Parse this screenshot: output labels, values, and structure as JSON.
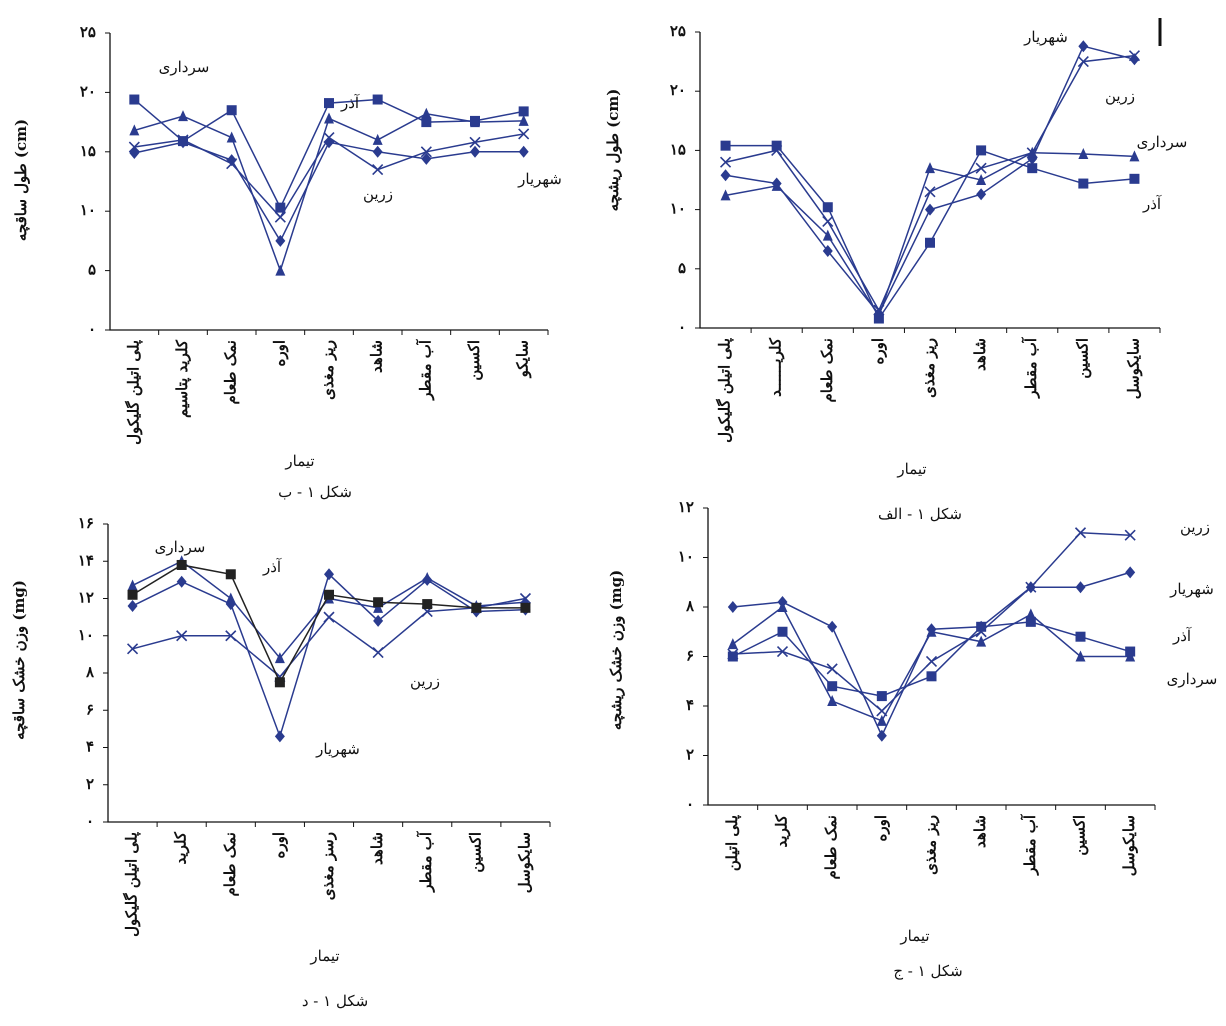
{
  "chart_data": [
    {
      "type": "line",
      "y_label": "طول ساقچه (cm)",
      "x_label": "تیمار",
      "caption": "شکل ۱ - ب",
      "categories": [
        "پلی اتیلن گلیکول",
        "کلرید پتاسیم",
        "نمک طعام",
        "اوره",
        "ریز مغذی",
        "شاهد",
        "آب مقطر",
        "اکسین",
        "سایکو"
      ],
      "ylim": [
        0,
        25
      ],
      "yticks": [
        {
          "value": 0,
          "label": "۰"
        },
        {
          "value": 5,
          "label": "۵"
        },
        {
          "value": 10,
          "label": "۱۰"
        },
        {
          "value": 15,
          "label": "۱۵"
        },
        {
          "value": 20,
          "label": "۲۰"
        },
        {
          "value": 25,
          "label": "۲۵"
        }
      ],
      "series": [
        {
          "name": "شهریار",
          "color": "#2a3b8f",
          "marker": "diamond",
          "values": [
            14.9,
            15.8,
            14.3,
            7.5,
            15.8,
            15.0,
            14.4,
            15.0,
            15.0
          ]
        },
        {
          "name": "زرین",
          "color": "#2a3b8f",
          "marker": "x",
          "values": [
            15.4,
            16.0,
            14.0,
            9.5,
            16.2,
            13.5,
            15.0,
            15.8,
            16.5
          ]
        },
        {
          "name": "سرداری",
          "color": "#2a3b8f",
          "marker": "triangle",
          "values": [
            16.8,
            18.0,
            16.2,
            5.0,
            17.8,
            16.0,
            18.2,
            17.5,
            17.6
          ]
        },
        {
          "name": "آذر",
          "color": "#2a3b8f",
          "marker": "square",
          "values": [
            19.4,
            15.9,
            18.5,
            10.3,
            19.1,
            19.4,
            17.5,
            17.6,
            18.4
          ]
        }
      ]
    },
    {
      "type": "line",
      "y_label": "طول ریشچه (cm)",
      "x_label": "تیمار",
      "caption": "شکل ۱ - الف",
      "categories": [
        "پلی اتیلن گلیکول",
        "کلریــــــد",
        "نمک طعام",
        "اوره",
        "ریز مغذی",
        "شاهد",
        "آب مقطر",
        "اکسین",
        "سایکوسل"
      ],
      "ylim": [
        0,
        25
      ],
      "yticks": [
        {
          "value": 0,
          "label": "۰"
        },
        {
          "value": 5,
          "label": "۵"
        },
        {
          "value": 10,
          "label": "۱۰"
        },
        {
          "value": 15,
          "label": "۱۵"
        },
        {
          "value": 20,
          "label": "۲۰"
        },
        {
          "value": 25,
          "label": "۲۵"
        }
      ],
      "series": [
        {
          "name": "شهریار",
          "color": "#2a3b8f",
          "marker": "diamond",
          "values": [
            12.9,
            12.2,
            6.5,
            1.2,
            10.0,
            11.3,
            14.3,
            23.8,
            22.7
          ]
        },
        {
          "name": "زرین",
          "color": "#2a3b8f",
          "marker": "x",
          "values": [
            14.0,
            15.0,
            9.0,
            1.5,
            11.5,
            13.5,
            14.8,
            22.5,
            23.0
          ]
        },
        {
          "name": "سرداری",
          "color": "#2a3b8f",
          "marker": "triangle",
          "values": [
            11.2,
            12.0,
            7.8,
            1.0,
            13.5,
            12.5,
            14.8,
            14.7,
            14.5
          ]
        },
        {
          "name": "آذر",
          "color": "#2a3b8f",
          "marker": "square",
          "values": [
            15.4,
            15.4,
            10.2,
            0.8,
            7.2,
            15.0,
            13.5,
            12.2,
            12.6
          ]
        }
      ]
    },
    {
      "type": "line",
      "y_label": "وزن خشک ساقچه (mg)",
      "x_label": "تیمار",
      "caption": "شکل ۱ - د",
      "categories": [
        "پلی اتیلن گلیکول",
        "کلرید",
        "نمک طعام",
        "اوره",
        "رسز مغذی",
        "شاهد",
        "آب مقطر",
        "اکسین",
        "سایکوسل"
      ],
      "ylim": [
        0,
        16
      ],
      "yticks": [
        {
          "value": 0,
          "label": "۰"
        },
        {
          "value": 2,
          "label": "۲"
        },
        {
          "value": 4,
          "label": "۴"
        },
        {
          "value": 6,
          "label": "۶"
        },
        {
          "value": 8,
          "label": "۸"
        },
        {
          "value": 10,
          "label": "۱۰"
        },
        {
          "value": 12,
          "label": "۱۲"
        },
        {
          "value": 14,
          "label": "۱۴"
        },
        {
          "value": 16,
          "label": "۱۶"
        }
      ],
      "series": [
        {
          "name": "شهریار",
          "color": "#2a3b8f",
          "marker": "diamond",
          "values": [
            11.6,
            12.9,
            11.7,
            4.6,
            13.3,
            10.8,
            13.0,
            11.3,
            11.4
          ]
        },
        {
          "name": "زرین",
          "color": "#2a3b8f",
          "marker": "x",
          "values": [
            9.3,
            10.0,
            10.0,
            7.8,
            11.0,
            9.1,
            11.3,
            11.5,
            12.0
          ]
        },
        {
          "name": "سرداری",
          "color": "#2a3b8f",
          "marker": "triangle",
          "values": [
            12.7,
            14.0,
            12.0,
            8.8,
            12.0,
            11.5,
            13.1,
            11.6,
            11.8
          ]
        },
        {
          "name": "آذر",
          "color": "#222222",
          "marker": "square",
          "values": [
            12.2,
            13.8,
            13.3,
            7.5,
            12.2,
            11.8,
            11.7,
            11.5,
            11.5
          ]
        }
      ]
    },
    {
      "type": "line",
      "y_label": "وزن خشک ریشچه (mg)",
      "x_label": "تیمار",
      "caption": "شکل ۱ - ج",
      "categories": [
        "پلی اتیلن",
        "کلرید",
        "نمک طعام",
        "اوره",
        "ریز مغذی",
        "شاهد",
        "آب مقطر",
        "اکسین",
        "سایکوسل"
      ],
      "ylim": [
        0,
        12
      ],
      "yticks": [
        {
          "value": 0,
          "label": "۰"
        },
        {
          "value": 2,
          "label": "۲"
        },
        {
          "value": 4,
          "label": "۴"
        },
        {
          "value": 6,
          "label": "۶"
        },
        {
          "value": 8,
          "label": "۸"
        },
        {
          "value": 10,
          "label": "۱۰"
        },
        {
          "value": 12,
          "label": "۱۲"
        }
      ],
      "series": [
        {
          "name": "شهریار",
          "color": "#2a3b8f",
          "marker": "diamond",
          "values": [
            8.0,
            8.2,
            7.2,
            2.8,
            7.1,
            7.2,
            8.8,
            8.8,
            9.4
          ]
        },
        {
          "name": "زرین",
          "color": "#2a3b8f",
          "marker": "x",
          "values": [
            6.1,
            6.2,
            5.5,
            3.8,
            5.8,
            7.0,
            8.8,
            11.0,
            10.9
          ]
        },
        {
          "name": "سرداری",
          "color": "#2a3b8f",
          "marker": "triangle",
          "values": [
            6.5,
            8.0,
            4.2,
            3.4,
            7.0,
            6.6,
            7.7,
            6.0,
            6.0
          ]
        },
        {
          "name": "آذر",
          "color": "#2a3b8f",
          "marker": "square",
          "values": [
            6.0,
            7.0,
            4.8,
            4.4,
            5.2,
            7.2,
            7.4,
            6.8,
            6.2
          ]
        }
      ]
    }
  ]
}
